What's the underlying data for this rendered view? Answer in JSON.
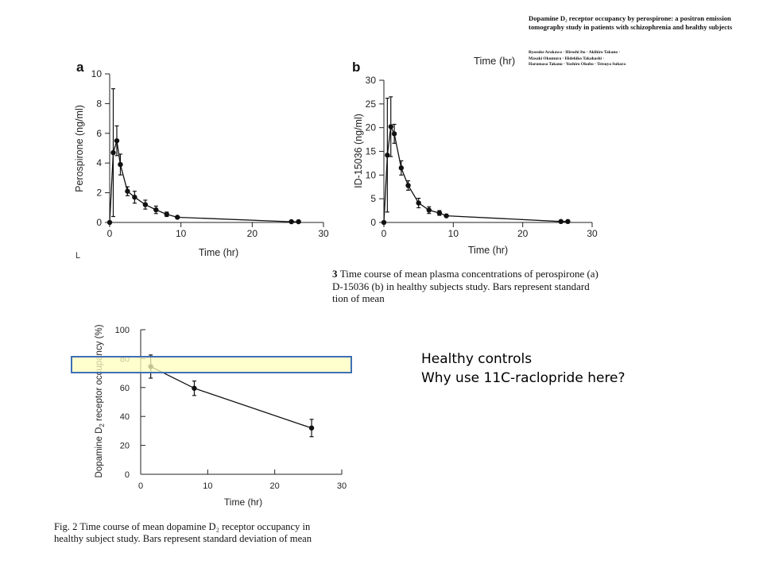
{
  "paper": {
    "title": "Dopamine D₂ receptor occupancy by perospirone: a positron emission tomography study in patients with schizophrenia and healthy subjects",
    "authors_line1": "Ryosuke Arakawa · Hiroshi Ito · Akihiro Takano ·",
    "authors_line2": "Masaki Okumura · Hidehiko Takahashi ·",
    "authors_line3": "Harumasa Takano · Yoshiro Okubo · Tetsuya Suhara"
  },
  "fig1_caption": {
    "line1": "Time course of mean plasma concentrations of perospirone (a)",
    "line2": "D-15036 (b) in healthy subjects study. Bars represent standard",
    "line3": "tion of mean"
  },
  "fig2_caption": {
    "line1": "Fig. 2 Time course of mean dopamine D₂ receptor occupancy in",
    "line2": "healthy subject study. Bars represent standard deviation of mean"
  },
  "notes": {
    "line1": "Healthy controls",
    "line2": "Why use 11C-raclopride here?"
  },
  "stray_mark": "L",
  "colors": {
    "highlight_fill": "#ffffbe",
    "highlight_border": "#3f6fb5",
    "marker": "#111111"
  },
  "chart_data": [
    {
      "id": "a",
      "panel_label": "a",
      "type": "line",
      "xlabel": "Time (hr)",
      "ylabel": "Perospirone (ng/ml)",
      "xlim": [
        0,
        30
      ],
      "ylim": [
        0,
        10
      ],
      "xticks": [
        0,
        10,
        20,
        30
      ],
      "yticks": [
        0,
        2,
        4,
        6,
        8,
        10
      ],
      "grid": false,
      "points": [
        {
          "x": 0,
          "y": 0,
          "err": 0
        },
        {
          "x": 0.5,
          "y": 4.7,
          "err": 4.3
        },
        {
          "x": 1,
          "y": 5.5,
          "err": 1.0
        },
        {
          "x": 1.5,
          "y": 3.9,
          "err": 0.7
        },
        {
          "x": 2.5,
          "y": 2.1,
          "err": 0.3
        },
        {
          "x": 3.5,
          "y": 1.7,
          "err": 0.4
        },
        {
          "x": 5,
          "y": 1.2,
          "err": 0.3
        },
        {
          "x": 6.5,
          "y": 0.85,
          "err": 0.25
        },
        {
          "x": 8,
          "y": 0.55,
          "err": 0.15
        },
        {
          "x": 9.5,
          "y": 0.35,
          "err": 0.05
        },
        {
          "x": 25.5,
          "y": 0.05,
          "err": 0
        },
        {
          "x": 26.5,
          "y": 0.05,
          "err": 0
        }
      ]
    },
    {
      "id": "b",
      "panel_label": "b",
      "type": "line",
      "xlabel": "Time (hr)",
      "top_label": "Time (hr)",
      "ylabel": "ID-15036 (ng/ml)",
      "xlim": [
        0,
        30
      ],
      "ylim": [
        0,
        30
      ],
      "xticks": [
        0,
        10,
        20,
        30
      ],
      "yticks": [
        0,
        5,
        10,
        15,
        20,
        25,
        30
      ],
      "grid": false,
      "points": [
        {
          "x": 0,
          "y": 0,
          "err": 0
        },
        {
          "x": 0.5,
          "y": 14.2,
          "err": 12.0
        },
        {
          "x": 1,
          "y": 20.2,
          "err": 6.3
        },
        {
          "x": 1.5,
          "y": 18.7,
          "err": 2.0
        },
        {
          "x": 2.5,
          "y": 11.5,
          "err": 1.5
        },
        {
          "x": 3.5,
          "y": 7.8,
          "err": 1.0
        },
        {
          "x": 5,
          "y": 4.1,
          "err": 1.0
        },
        {
          "x": 6.5,
          "y": 2.6,
          "err": 0.7
        },
        {
          "x": 8,
          "y": 2.0,
          "err": 0.5
        },
        {
          "x": 9,
          "y": 1.4,
          "err": 0.2
        },
        {
          "x": 25.5,
          "y": 0.2,
          "err": 0
        },
        {
          "x": 26.5,
          "y": 0.2,
          "err": 0
        }
      ]
    },
    {
      "id": "c",
      "type": "line",
      "xlabel": "Time (hr)",
      "ylabel_main": "Dopamine D",
      "ylabel_sub": "2",
      "ylabel_rest": " receptor occupancy (%)",
      "xlim": [
        0,
        30
      ],
      "ylim": [
        0,
        100
      ],
      "xticks": [
        0,
        10,
        20,
        30
      ],
      "yticks": [
        0,
        20,
        40,
        60,
        80,
        100
      ],
      "grid": false,
      "points": [
        {
          "x": 1.5,
          "y": 74.5,
          "err": 8
        },
        {
          "x": 8,
          "y": 59.5,
          "err": 5
        },
        {
          "x": 25.5,
          "y": 32.0,
          "err": 6
        }
      ]
    }
  ]
}
